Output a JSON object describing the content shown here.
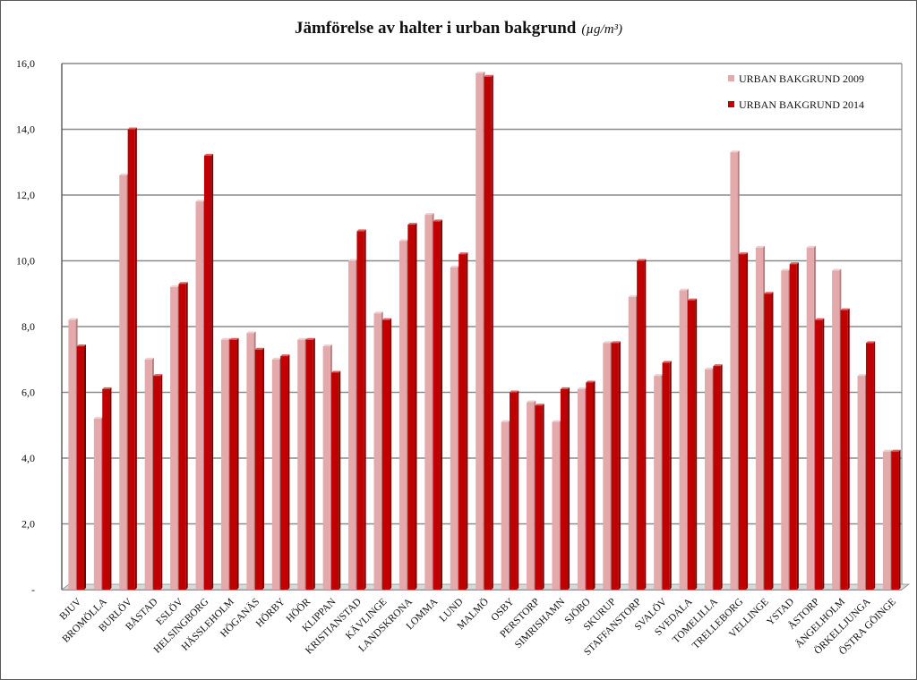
{
  "chart_data": {
    "type": "bar",
    "title": "Jämförelse av halter i urban bakgrund",
    "unit": "(µg/m³)",
    "xlabel": "",
    "ylabel": "",
    "ylim": [
      0,
      16
    ],
    "yticks": [
      "-",
      "2,0",
      "4,0",
      "6,0",
      "8,0",
      "10,0",
      "12,0",
      "14,0",
      "16,0"
    ],
    "grid": true,
    "legend_position": "top-right",
    "categories": [
      "BJUV",
      "BROMÖLLA",
      "BURLÖV",
      "BÅSTAD",
      "ESLÖV",
      "HELSINGBORG",
      "HÄSSLEHOLM",
      "HÖGANÄS",
      "HÖRBY",
      "HÖÖR",
      "KLIPPAN",
      "KRISTIANSTAD",
      "KÄVLINGE",
      "LANDSKRONA",
      "LOMMA",
      "LUND",
      "MALMÖ",
      "OSBY",
      "PERSTORP",
      "SIMRISHAMN",
      "SJÖBO",
      "SKURUP",
      "STAFFANSTORP",
      "SVALÖV",
      "SVEDALA",
      "TOMELILLA",
      "TRELLEBORG",
      "VELLINGE",
      "YSTAD",
      "ÅSTORP",
      "ÄNGELHOLM",
      "ÖRKELLJUNGA",
      "ÖSTRA GÖINGE"
    ],
    "series": [
      {
        "name": "URBAN BAKGRUND 2009",
        "color": "#e3a9ab",
        "values": [
          8.2,
          5.2,
          12.6,
          7.0,
          9.2,
          11.8,
          7.6,
          7.8,
          7.0,
          7.6,
          7.4,
          10.0,
          8.4,
          10.6,
          11.4,
          9.8,
          15.7,
          5.1,
          5.7,
          5.1,
          6.1,
          7.5,
          8.9,
          6.5,
          9.1,
          6.7,
          13.3,
          10.4,
          9.7,
          10.4,
          9.7,
          6.5,
          4.2
        ]
      },
      {
        "name": "URBAN BAKGRUND 2014",
        "color": "#c00000",
        "values": [
          7.4,
          6.1,
          14.0,
          6.5,
          9.3,
          13.2,
          7.6,
          7.3,
          7.1,
          7.6,
          6.6,
          10.9,
          8.2,
          11.1,
          11.2,
          10.2,
          15.6,
          6.0,
          5.6,
          6.1,
          6.3,
          7.5,
          10.0,
          6.9,
          8.8,
          6.8,
          10.2,
          9.0,
          9.9,
          8.2,
          8.5,
          7.5,
          4.2
        ]
      }
    ]
  }
}
